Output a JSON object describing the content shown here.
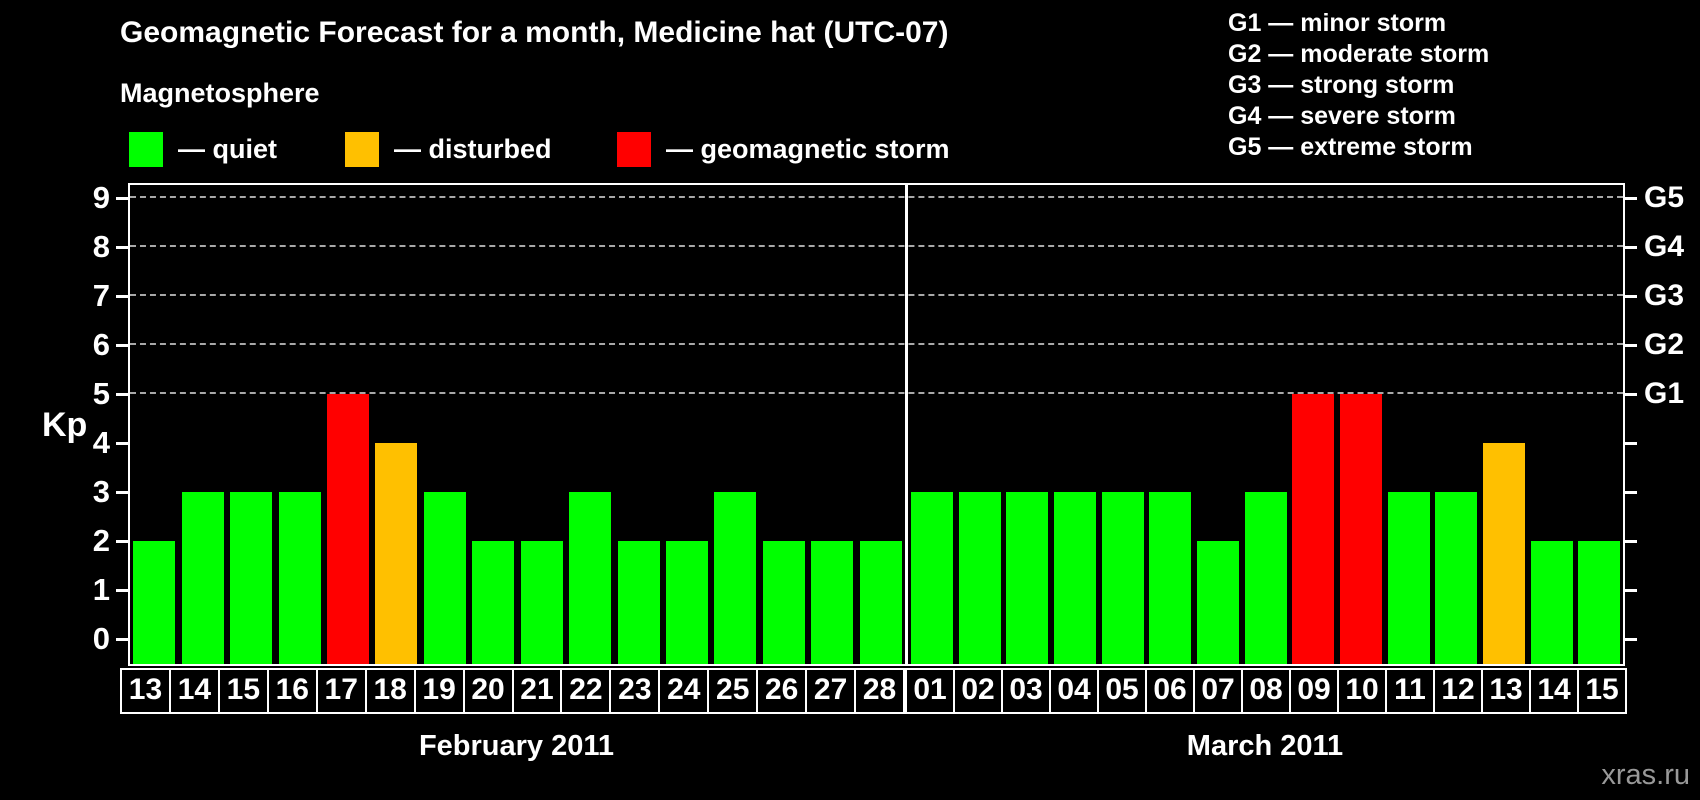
{
  "header": {
    "title": "Geomagnetic Forecast for a month, Medicine hat (UTC-07)",
    "subtitle": "Magnetosphere",
    "legend": [
      {
        "status": "quiet",
        "label": "— quiet"
      },
      {
        "status": "disturbed",
        "label": "— disturbed"
      },
      {
        "status": "storm",
        "label": "— geomagnetic storm"
      }
    ],
    "g_scale_legend": [
      "G1 — minor storm",
      "G2 — moderate storm",
      "G3 — strong storm",
      "G4 — severe storm",
      "G5 — extreme storm"
    ]
  },
  "colors": {
    "quiet": "#00ff00",
    "disturbed": "#ffc000",
    "storm": "#ff0000",
    "axis": "#ffffff",
    "grid": "#a8a8a8",
    "watermark": "#999999"
  },
  "chart_data": {
    "type": "bar",
    "title": "Geomagnetic Forecast for a month, Medicine hat (UTC-07)",
    "ylabel": "Kp",
    "ylim": [
      0,
      9
    ],
    "y_ticks": [
      0,
      1,
      2,
      3,
      4,
      5,
      6,
      7,
      8,
      9
    ],
    "gridlines_at": [
      5,
      6,
      7,
      8,
      9
    ],
    "grid": "dashed horizontal at Kp 5-9 only",
    "legend_position": "top",
    "right_axis_labels": [
      {
        "kp": 5,
        "label": "G1"
      },
      {
        "kp": 6,
        "label": "G2"
      },
      {
        "kp": 7,
        "label": "G3"
      },
      {
        "kp": 8,
        "label": "G4"
      },
      {
        "kp": 9,
        "label": "G5"
      }
    ],
    "months": [
      {
        "label": "February 2011",
        "days": [
          "13",
          "14",
          "15",
          "16",
          "17",
          "18",
          "19",
          "20",
          "21",
          "22",
          "23",
          "24",
          "25",
          "26",
          "27",
          "28"
        ],
        "values": [
          2,
          3,
          3,
          3,
          5,
          4,
          3,
          2,
          2,
          3,
          2,
          2,
          3,
          2,
          2,
          2
        ],
        "status": [
          "quiet",
          "quiet",
          "quiet",
          "quiet",
          "storm",
          "disturbed",
          "quiet",
          "quiet",
          "quiet",
          "quiet",
          "quiet",
          "quiet",
          "quiet",
          "quiet",
          "quiet",
          "quiet"
        ]
      },
      {
        "label": "March 2011",
        "days": [
          "01",
          "02",
          "03",
          "04",
          "05",
          "06",
          "07",
          "08",
          "09",
          "10",
          "11",
          "12",
          "13",
          "14",
          "15"
        ],
        "values": [
          3,
          3,
          3,
          3,
          3,
          3,
          2,
          3,
          5,
          5,
          3,
          3,
          4,
          2,
          2
        ],
        "status": [
          "quiet",
          "quiet",
          "quiet",
          "quiet",
          "quiet",
          "quiet",
          "quiet",
          "quiet",
          "storm",
          "storm",
          "quiet",
          "quiet",
          "disturbed",
          "quiet",
          "quiet"
        ]
      }
    ]
  },
  "watermark": "xras.ru"
}
